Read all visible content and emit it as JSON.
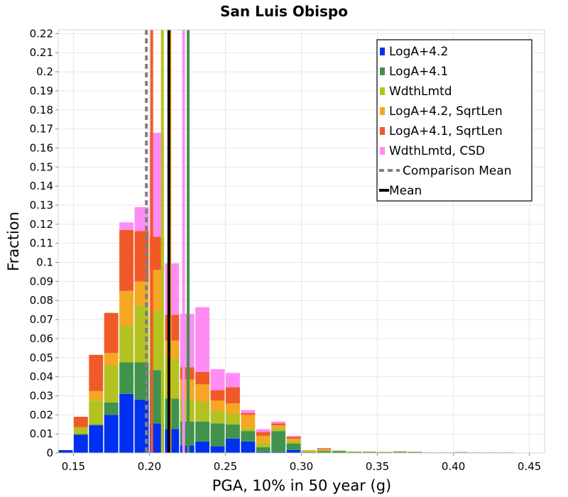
{
  "chart_data": {
    "type": "bar",
    "stacked": true,
    "title": "San Luis Obispo",
    "xlabel": "PGA, 10% in 50 year (g)",
    "ylabel": "Fraction",
    "xlim": [
      0.14,
      0.46
    ],
    "ylim": [
      0,
      0.222
    ],
    "grid": true,
    "legend_position": "top-right",
    "x_ticks": [
      "0.15",
      "0.20",
      "0.25",
      "0.30",
      "0.35",
      "0.40",
      "0.45"
    ],
    "y_ticks": [
      "0",
      "0.01",
      "0.02",
      "0.03",
      "0.04",
      "0.05",
      "0.06",
      "0.07",
      "0.08",
      "0.09",
      "0.1",
      "0.11",
      "0.12",
      "0.13",
      "0.14",
      "0.15",
      "0.16",
      "0.17",
      "0.18",
      "0.19",
      "0.2",
      "0.21",
      "0.22"
    ],
    "bin_width": 0.01,
    "bin_centers": [
      0.145,
      0.155,
      0.165,
      0.175,
      0.185,
      0.195,
      0.205,
      0.215,
      0.225,
      0.235,
      0.245,
      0.255,
      0.265,
      0.275,
      0.285,
      0.295,
      0.305,
      0.315,
      0.325,
      0.335,
      0.345,
      0.355,
      0.365,
      0.375,
      0.385,
      0.395,
      0.405,
      0.415,
      0.425,
      0.435,
      0.445,
      0.455
    ],
    "series": [
      {
        "name": "LogA+4.2",
        "color": "#0030f0",
        "values": [
          0.0015,
          0.0095,
          0.0145,
          0.02,
          0.031,
          0.028,
          0.0155,
          0.0125,
          0.004,
          0.006,
          0.0035,
          0.0075,
          0.006,
          0.0005,
          0.0005,
          0.0015,
          0,
          0,
          0,
          0,
          0,
          0,
          0,
          0,
          0,
          0,
          0,
          0,
          0,
          0,
          0,
          0
        ]
      },
      {
        "name": "LogA+4.1",
        "color": "#40924d",
        "values": [
          0,
          0.0005,
          0.0005,
          0.0065,
          0.0165,
          0.0195,
          0.028,
          0.016,
          0.0125,
          0.0105,
          0.012,
          0.0075,
          0.0055,
          0.0025,
          0.011,
          0.0035,
          0.0005,
          0.001,
          0.001,
          0.0005,
          0.0005,
          0.0005,
          0.0005,
          0.0005,
          0.0003,
          0.0003,
          0.0003,
          0.0003,
          0.0003,
          0.0003,
          0,
          0
        ]
      },
      {
        "name": "WdthLmtd",
        "color": "#b3c220",
        "values": [
          0,
          0.0035,
          0.0125,
          0.0195,
          0.019,
          0.03,
          0.031,
          0.021,
          0.0115,
          0.0105,
          0.0065,
          0.0055,
          0.0015,
          0.0025,
          0.0015,
          0.0015,
          0.0005,
          0.0005,
          0.0003,
          0.0003,
          0.0003,
          0,
          0.0002,
          0.0002,
          0,
          0,
          0,
          0,
          0,
          0,
          0,
          0
        ]
      },
      {
        "name": "LogA+4.2, SqrtLen",
        "color": "#f5a623",
        "values": [
          0,
          0,
          0.005,
          0.0065,
          0.0185,
          0.0125,
          0.0215,
          0.0095,
          0.0105,
          0.009,
          0.0055,
          0.0055,
          0.007,
          0.0035,
          0.0015,
          0.001,
          0.0005,
          0.0005,
          0,
          0,
          0,
          0,
          0,
          0,
          0,
          0,
          0,
          0,
          0,
          0,
          0,
          0
        ]
      },
      {
        "name": "LogA+4.1, SqrtLen",
        "color": "#f05a28",
        "values": [
          0,
          0.0055,
          0.019,
          0.021,
          0.032,
          0.0265,
          0.0175,
          0.0135,
          0.0065,
          0.0065,
          0.0055,
          0.0085,
          0.001,
          0.002,
          0.001,
          0.001,
          0,
          0.0005,
          0,
          0,
          0,
          0,
          0.0002,
          0,
          0,
          0,
          0.0002,
          0,
          0,
          0,
          0,
          0
        ]
      },
      {
        "name": "WdthLmtd, CSD",
        "color": "#ff8cf5",
        "values": [
          0,
          0,
          0,
          0,
          0.004,
          0.0125,
          0.0545,
          0.027,
          0.028,
          0.034,
          0.011,
          0.0075,
          0.0015,
          0.0015,
          0.001,
          0.0005,
          0,
          0,
          0,
          0,
          0,
          0,
          0,
          0,
          0,
          0,
          0,
          0,
          0,
          0,
          0,
          0
        ]
      }
    ],
    "reference_lines": [
      {
        "series": "LogA+4.2",
        "x": 0.213,
        "color": "#0030f0"
      },
      {
        "series": "LogA+4.1",
        "x": 0.2255,
        "color": "#40924d"
      },
      {
        "series": "WdthLmtd",
        "x": 0.2085,
        "color": "#b3c220"
      },
      {
        "series": "LogA+4.2, SqrtLen",
        "x": 0.2135,
        "color": "#f5a623"
      },
      {
        "series": "LogA+4.1, SqrtLen",
        "x": 0.2015,
        "color": "#f05a28"
      },
      {
        "series": "WdthLmtd, CSD",
        "x": 0.2225,
        "color": "#ff8cf5"
      },
      {
        "series": "Comparison Mean",
        "x": 0.198,
        "color": "#808080",
        "style": "dashed"
      },
      {
        "series": "Mean",
        "x": 0.2128,
        "color": "#000000"
      }
    ],
    "legend": [
      {
        "label": "LogA+4.2",
        "color": "#0030f0",
        "marker": "square"
      },
      {
        "label": "LogA+4.1",
        "color": "#40924d",
        "marker": "square"
      },
      {
        "label": "WdthLmtd",
        "color": "#b3c220",
        "marker": "square"
      },
      {
        "label": "LogA+4.2, SqrtLen",
        "color": "#f5a623",
        "marker": "square"
      },
      {
        "label": "LogA+4.1, SqrtLen",
        "color": "#f05a28",
        "marker": "square"
      },
      {
        "label": "WdthLmtd, CSD",
        "color": "#ff8cf5",
        "marker": "square"
      },
      {
        "label": "Comparison Mean",
        "color": "#808080",
        "marker": "dashed-line"
      },
      {
        "label": "Mean",
        "color": "#000000",
        "marker": "line"
      }
    ]
  }
}
